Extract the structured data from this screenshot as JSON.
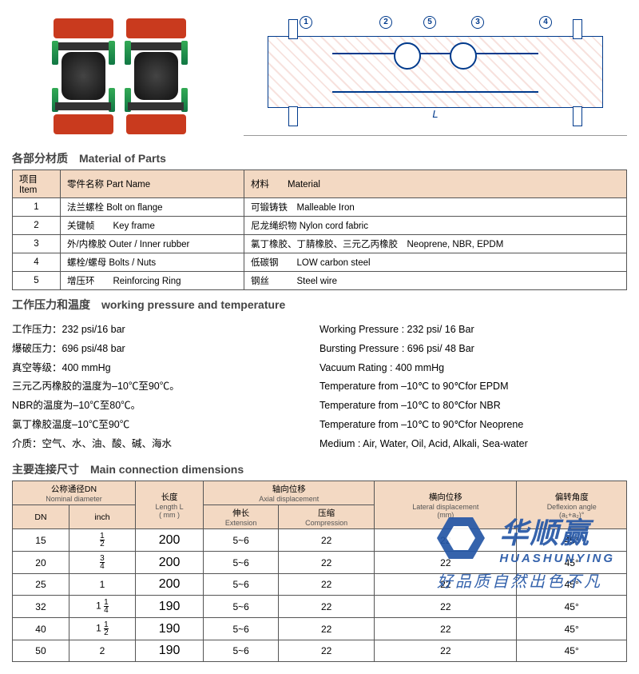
{
  "sections": {
    "parts_title": "各部分材质　Material of Parts",
    "working_title": "工作压力和温度　working pressure and temperature",
    "dim_title": "主要连接尺寸　Main connection dimensions"
  },
  "diagram": {
    "callouts": [
      "1",
      "2",
      "3",
      "4",
      "5"
    ],
    "dim_label": "L",
    "line_color": "#003a8c",
    "hatch_color": "#c93a1e"
  },
  "colors": {
    "header_bg": "#f3d9c3",
    "border": "#555555",
    "brand": "#2456a6",
    "flange": "#c93a1e"
  },
  "parts_table": {
    "headers": {
      "item": "项目 Item",
      "name": "零件名称  Part Name",
      "material": "材料　　Material"
    },
    "rows": [
      {
        "n": "1",
        "name": "法兰螺栓  Bolt on flange",
        "mat": "可锻铸铁　Malleable Iron"
      },
      {
        "n": "2",
        "name": "关键帧　　Key frame",
        "mat": "尼龙绳织物 Nylon cord fabric"
      },
      {
        "n": "3",
        "name": "外/内橡胶 Outer / Inner rubber",
        "mat": "氯丁橡胶、丁腈橡胶、三元乙丙橡胶　Neoprene, NBR, EPDM"
      },
      {
        "n": "4",
        "name": "螺栓/螺母 Bolts / Nuts",
        "mat": "低碳钢　　LOW carbon steel"
      },
      {
        "n": "5",
        "name": "增压环　　Reinforcing Ring",
        "mat": "钢丝　　　Steel wire"
      }
    ]
  },
  "specs": {
    "left": [
      "工作压力：232 psi/16 bar",
      "爆破压力：696 psi/48 bar",
      "真空等级：400 mmHg",
      "三元乙丙橡胶的温度为–10℃至90℃。",
      "NBR的温度为–10℃至80℃。",
      "氯丁橡胶温度–10℃至90℃",
      "介质：空气、水、油、酸、碱、海水"
    ],
    "right": [
      "Working Pressure : 232 psi/ 16 Bar",
      "Bursting Pressure : 696 psi/ 48 Bar",
      "Vacuum Rating  : 400 mmHg",
      "Temperature from –10℃ to 90℃for EPDM",
      "Temperature from –10℃ to 80℃for NBR",
      "Temperature from –10℃ to 90℃for Neoprene",
      "Medium : Air, Water, Oil, Acid, Alkali, Sea-water"
    ]
  },
  "dim_table": {
    "headers": {
      "dn": "公称通径DN",
      "dn_sub": "Nominal diameter",
      "dn_c": "DN",
      "inch": "inch",
      "len": "长度",
      "len_sub": "Length L",
      "len_unit": "( mm )",
      "axial": "轴向位移",
      "axial_sub": "Axial displacement",
      "ext": "伸长",
      "ext_sub": "Extension",
      "comp": "压缩",
      "comp_sub": "Compression",
      "lat": "横向位移",
      "lat_sub": "Lateral  displacement",
      "lat_unit": "(mm)",
      "ang": "偏转角度",
      "ang_sub": "Deflexion angle",
      "ang_unit": "(a₁+a₂)°"
    },
    "rows": [
      {
        "dn": "15",
        "inch": "1/2",
        "len": "200",
        "ext": "5~6",
        "comp": "22",
        "lat": "22",
        "ang": "45°"
      },
      {
        "dn": "20",
        "inch": "3/4",
        "len": "200",
        "ext": "5~6",
        "comp": "22",
        "lat": "22",
        "ang": "45°"
      },
      {
        "dn": "25",
        "inch": "1",
        "len": "200",
        "ext": "5~6",
        "comp": "22",
        "lat": "22",
        "ang": "45°"
      },
      {
        "dn": "32",
        "inch": "1 1/4",
        "len": "190",
        "ext": "5~6",
        "comp": "22",
        "lat": "22",
        "ang": "45°"
      },
      {
        "dn": "40",
        "inch": "1 1/2",
        "len": "190",
        "ext": "5~6",
        "comp": "22",
        "lat": "22",
        "ang": "45°"
      },
      {
        "dn": "50",
        "inch": "2",
        "len": "190",
        "ext": "5~6",
        "comp": "22",
        "lat": "22",
        "ang": "45°"
      }
    ]
  },
  "watermark": {
    "cn": "华顺赢",
    "en": "HUASHUNYING",
    "slogan": "好品质自然出色不凡"
  }
}
